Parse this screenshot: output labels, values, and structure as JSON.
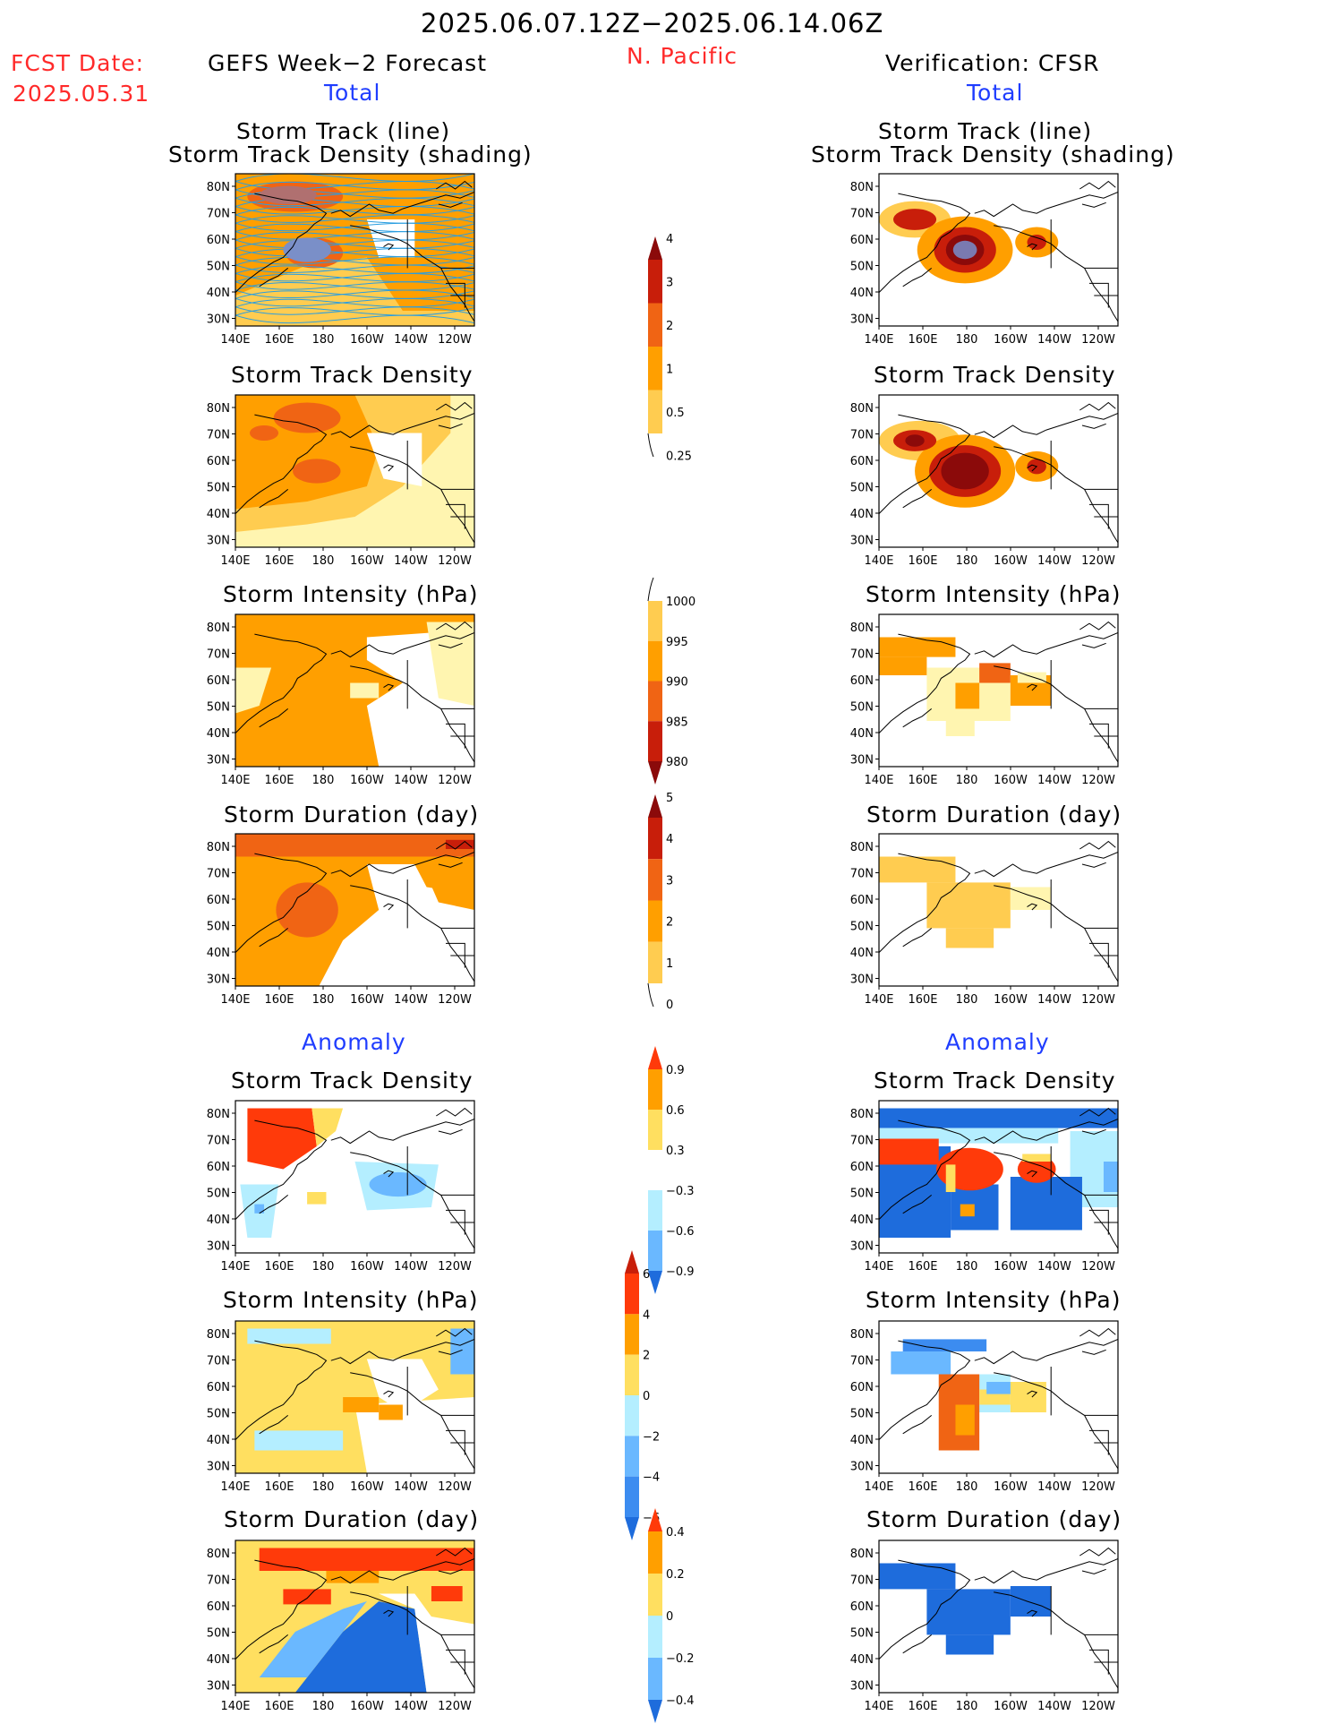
{
  "header": {
    "period": "2025.06.07.12Z−2025.06.14.06Z",
    "region": "N. Pacific",
    "fcst_label": "FCST Date:",
    "fcst_date": "2025.05.31",
    "left_heading": "GEFS Week−2 Forecast",
    "right_heading": "Verification: CFSR",
    "total_label": "Total",
    "anomaly_label": "Anomaly"
  },
  "map_axes": {
    "x_ticks": [
      "140E",
      "160E",
      "180",
      "160W",
      "140W",
      "120W"
    ],
    "y_ticks": [
      "80N",
      "70N",
      "60N",
      "50N",
      "40N",
      "30N"
    ]
  },
  "panels": [
    {
      "row": 0,
      "title": [
        "Storm Track (line)",
        "Storm Track Density (shading)"
      ]
    },
    {
      "row": 1,
      "title": [
        "Storm Track Density"
      ]
    },
    {
      "row": 2,
      "title": [
        "Storm Intensity (hPa)"
      ]
    },
    {
      "row": 3,
      "title": [
        "Storm Duration (day)"
      ]
    },
    {
      "row": 4,
      "title": [
        "Storm Track Density"
      ]
    },
    {
      "row": 5,
      "title": [
        "Storm Intensity (hPa)"
      ]
    },
    {
      "row": 6,
      "title": [
        "Storm Duration (day)"
      ]
    }
  ],
  "colorbars": [
    {
      "id": "density-total",
      "labels": [
        "4",
        "3",
        "2",
        "1",
        "0.5",
        "0.25"
      ],
      "colors": [
        "#8b0a0a",
        "#c81e0a",
        "#f06414",
        "#ff9f00",
        "#ffcc50",
        "#fff5b0"
      ]
    },
    {
      "id": "intensity-total",
      "labels": [
        "1000",
        "995",
        "990",
        "985",
        "980"
      ],
      "colors": [
        "#fff5b0",
        "#ffcc50",
        "#ff9f00",
        "#f06414",
        "#c81e0a",
        "#8b0a0a"
      ]
    },
    {
      "id": "duration-total",
      "labels": [
        "5",
        "4",
        "3",
        "2",
        "1",
        "0"
      ],
      "colors": [
        "#8b0a0a",
        "#c81e0a",
        "#f06414",
        "#ff9f00",
        "#ffcc50",
        "#fff5b0"
      ]
    },
    {
      "id": "density-anom",
      "labels": [
        "0.9",
        "0.6",
        "0.3",
        "−0.3",
        "−0.6",
        "−0.9"
      ],
      "colors": [
        "#ff3a0a",
        "#ff9f00",
        "#ffdf60",
        "#ffffff",
        "#b4eeff",
        "#6ab8ff",
        "#1e6cdc"
      ]
    },
    {
      "id": "intensity-anom",
      "labels": [
        "6",
        "4",
        "2",
        "0",
        "−2",
        "−4",
        "−6"
      ],
      "colors": [
        "#c81e0a",
        "#ff3a0a",
        "#ff9f00",
        "#ffdf60",
        "#b4eeff",
        "#6ab8ff",
        "#3c8cf0",
        "#1e6cdc"
      ]
    },
    {
      "id": "duration-anom",
      "labels": [
        "0.4",
        "0.2",
        "0",
        "−0.2",
        "−0.4"
      ],
      "colors": [
        "#ff3a0a",
        "#ff9f00",
        "#ffdf60",
        "#b4eeff",
        "#6ab8ff",
        "#1e6cdc"
      ]
    }
  ],
  "colors": {
    "red_text": "#ff2a2a",
    "blue_text": "#1f3dff",
    "land": "#000000"
  },
  "chart_data": [
    {
      "type": "heatmap",
      "title": "Storm Track (line) / Storm Track Density (shading)",
      "source": "GEFS Week−2 Forecast",
      "variant": "Total",
      "xlabel": "",
      "ylabel": "",
      "xlim": [
        "140E",
        "120W"
      ],
      "ylim": [
        "30N",
        "80N"
      ],
      "legend": "4, 3, 2, 1, 0.5, 0.25",
      "overlay": "storm track lines"
    },
    {
      "type": "heatmap",
      "title": "Storm Track Density",
      "source": "GEFS Week−2 Forecast",
      "variant": "Total"
    },
    {
      "type": "heatmap",
      "title": "Storm Intensity (hPa)",
      "source": "GEFS Week−2 Forecast",
      "variant": "Total"
    },
    {
      "type": "heatmap",
      "title": "Storm Duration (day)",
      "source": "GEFS Week−2 Forecast",
      "variant": "Total"
    },
    {
      "type": "heatmap",
      "title": "Storm Track Density",
      "source": "GEFS Week−2 Forecast",
      "variant": "Anomaly"
    },
    {
      "type": "heatmap",
      "title": "Storm Intensity (hPa)",
      "source": "GEFS Week−2 Forecast",
      "variant": "Anomaly"
    },
    {
      "type": "heatmap",
      "title": "Storm Duration (day)",
      "source": "GEFS Week−2 Forecast",
      "variant": "Anomaly"
    },
    {
      "type": "heatmap",
      "title": "Storm Track (line) / Storm Track Density (shading)",
      "source": "Verification: CFSR",
      "variant": "Total"
    },
    {
      "type": "heatmap",
      "title": "Storm Track Density",
      "source": "Verification: CFSR",
      "variant": "Total"
    },
    {
      "type": "heatmap",
      "title": "Storm Intensity (hPa)",
      "source": "Verification: CFSR",
      "variant": "Total"
    },
    {
      "type": "heatmap",
      "title": "Storm Duration (day)",
      "source": "Verification: CFSR",
      "variant": "Total"
    },
    {
      "type": "heatmap",
      "title": "Storm Track Density",
      "source": "Verification: CFSR",
      "variant": "Anomaly"
    },
    {
      "type": "heatmap",
      "title": "Storm Intensity (hPa)",
      "source": "Verification: CFSR",
      "variant": "Anomaly"
    },
    {
      "type": "heatmap",
      "title": "Storm Duration (day)",
      "source": "Verification: CFSR",
      "variant": "Anomaly"
    }
  ]
}
